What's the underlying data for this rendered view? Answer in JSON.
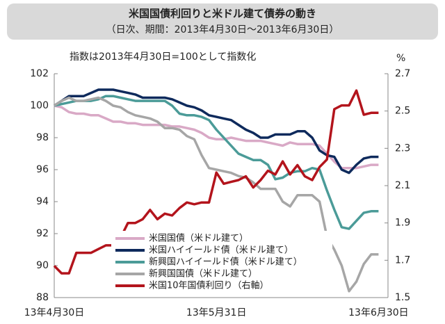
{
  "chart_data": {
    "type": "line",
    "title": "米国国債利回りと米ドル建て債券の動き",
    "subtitle": "（日次、期間：2013年4月30日～2013年6月30日）",
    "annotation": "指数は2013年4月30日=100として指数化",
    "y2_label": "%",
    "categories": [
      "13年4月30日",
      null,
      null,
      null,
      null,
      null,
      null,
      null,
      null,
      null,
      null,
      null,
      null,
      null,
      null,
      null,
      null,
      null,
      null,
      null,
      null,
      null,
      "13年5月31日",
      null,
      null,
      null,
      null,
      null,
      null,
      null,
      null,
      null,
      null,
      null,
      null,
      null,
      null,
      null,
      null,
      null,
      null,
      null,
      null,
      null,
      "13年6月30日"
    ],
    "ylim": [
      88,
      102
    ],
    "yticks": [
      88,
      90,
      92,
      94,
      96,
      98,
      100,
      102
    ],
    "y2lim": [
      1.5,
      2.7
    ],
    "y2ticks": [
      1.5,
      1.7,
      1.9,
      2.1,
      2.3,
      2.5,
      2.7
    ],
    "legend": "lower-center",
    "series": [
      {
        "name": "米国国債（米ドル建て）",
        "color": "#d9a9c6",
        "values": [
          100,
          99.9,
          99.6,
          99.5,
          99.5,
          99.4,
          99.4,
          99.2,
          99.0,
          99.0,
          98.9,
          98.9,
          98.8,
          98.8,
          98.8,
          98.8,
          98.7,
          98.7,
          98.6,
          98.5,
          98.3,
          98.0,
          97.9,
          97.9,
          98.0,
          97.9,
          97.8,
          97.8,
          97.8,
          97.7,
          97.6,
          97.5,
          97.7,
          97.6,
          97.6,
          97.6,
          97.5,
          97.0,
          96.5,
          96.1,
          96.1,
          96.1,
          96.2,
          96.3,
          96.3
        ]
      },
      {
        "name": "米国ハイイールド債（米ドル建て）",
        "color": "#0e2a5c",
        "values": [
          100,
          100.3,
          100.6,
          100.6,
          100.6,
          100.8,
          101.0,
          101.0,
          101.0,
          100.9,
          100.8,
          100.7,
          100.5,
          100.5,
          100.5,
          100.5,
          100.4,
          100.2,
          100.0,
          99.9,
          99.7,
          99.4,
          99.3,
          99.2,
          99.1,
          98.8,
          98.5,
          98.3,
          98.0,
          98.0,
          98.2,
          98.2,
          98.2,
          98.4,
          98.4,
          98.0,
          97.2,
          96.9,
          96.8,
          96.0,
          95.8,
          96.3,
          96.7,
          96.8,
          96.8
        ]
      },
      {
        "name": "新興国ハイイールド債（米ドル建て）",
        "color": "#4b9b98",
        "values": [
          100,
          100.1,
          100.2,
          100.3,
          100.3,
          100.3,
          100.4,
          100.6,
          100.6,
          100.5,
          100.4,
          100.3,
          100.3,
          100.3,
          100.3,
          100.3,
          100.0,
          99.5,
          99.4,
          99.4,
          99.3,
          99.1,
          98.5,
          98.0,
          97.5,
          97.0,
          96.8,
          96.6,
          96.6,
          96.3,
          95.4,
          95.5,
          95.8,
          95.9,
          95.9,
          96.1,
          96.0,
          94.7,
          93.5,
          92.4,
          92.3,
          92.8,
          93.3,
          93.4,
          93.4
        ]
      },
      {
        "name": "新興国国債（米ドル建て）",
        "color": "#a6a6a6",
        "values": [
          100,
          100.3,
          100.5,
          100.3,
          100.3,
          100.4,
          100.5,
          100.3,
          100.0,
          99.9,
          99.6,
          99.4,
          99.3,
          99.2,
          99.0,
          98.6,
          98.6,
          98.5,
          98.1,
          97.9,
          96.9,
          96.1,
          96.0,
          95.9,
          95.8,
          95.6,
          95.5,
          95.2,
          94.8,
          94.8,
          94.8,
          94.0,
          93.7,
          94.4,
          94.4,
          94.4,
          94.0,
          91.8,
          91.0,
          90.0,
          88.4,
          89.0,
          90.1,
          90.7,
          90.7
        ]
      },
      {
        "name": "米国10年国債利回り（右軸）",
        "color": "#b3141c",
        "axis": "y2",
        "values": [
          1.67,
          1.63,
          1.63,
          1.74,
          1.74,
          1.74,
          1.76,
          1.78,
          1.78,
          1.82,
          1.9,
          1.9,
          1.92,
          1.97,
          1.92,
          1.95,
          1.94,
          1.98,
          2.01,
          2.0,
          2.01,
          2.01,
          2.17,
          2.11,
          2.12,
          2.13,
          2.15,
          2.09,
          2.13,
          2.18,
          2.16,
          2.23,
          2.16,
          2.21,
          2.15,
          2.13,
          2.2,
          2.24,
          2.51,
          2.53,
          2.53,
          2.61,
          2.48,
          2.49,
          2.49
        ]
      }
    ]
  }
}
